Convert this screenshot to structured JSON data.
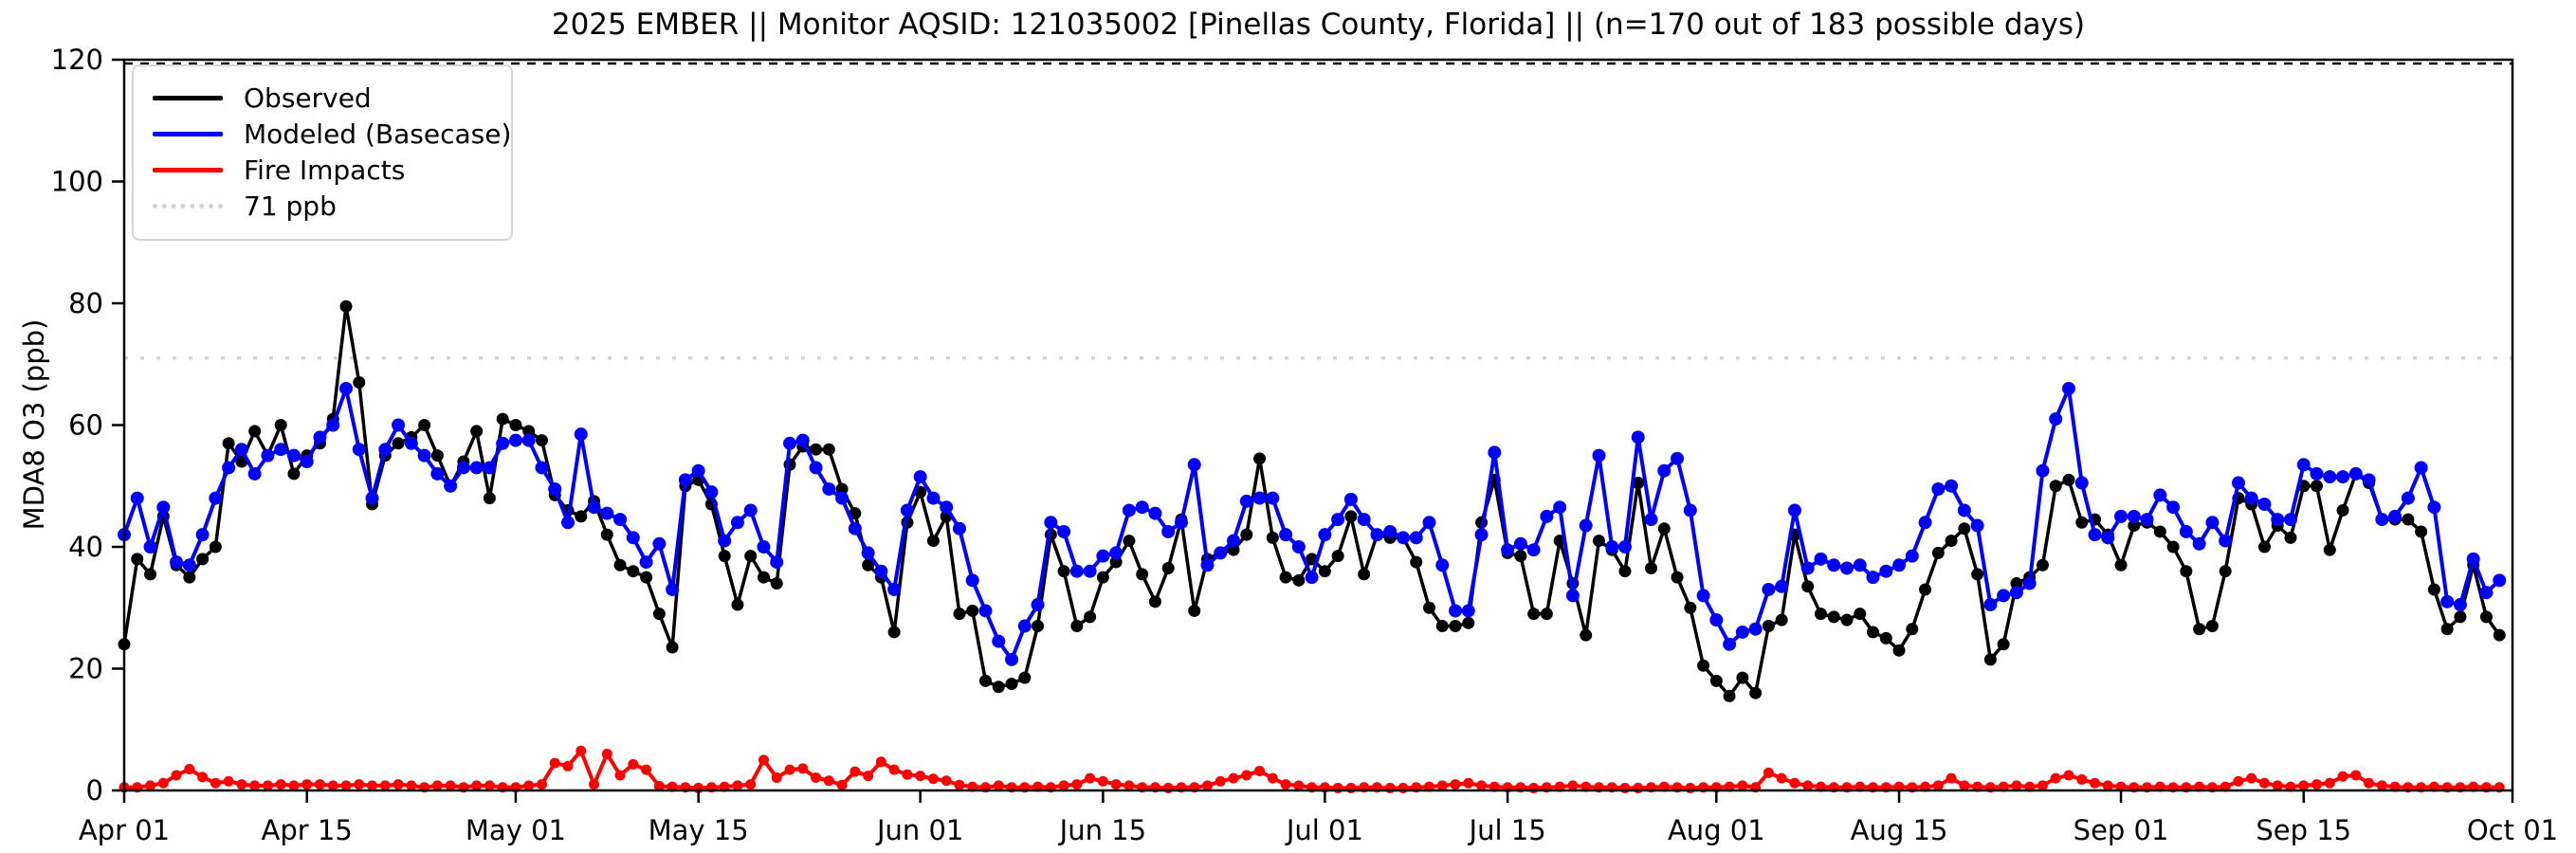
{
  "chart_data": {
    "type": "line",
    "title": "2025 EMBER || Monitor AQSID: 121035002 [Pinellas County, Florida] || (n=170 out of 183 possible days)",
    "ylabel": "MDA8 O3 (ppb)",
    "ylim": [
      0,
      120
    ],
    "y_ticks": [
      0,
      20,
      40,
      60,
      80,
      100,
      120
    ],
    "n_days": 183,
    "grid": false,
    "legend_position": "upper-left",
    "background_color": "#ffffff",
    "x_ticks": [
      {
        "day": 0,
        "label": "Apr 01"
      },
      {
        "day": 14,
        "label": "Apr 15"
      },
      {
        "day": 30,
        "label": "May 01"
      },
      {
        "day": 44,
        "label": "May 15"
      },
      {
        "day": 61,
        "label": "Jun 01"
      },
      {
        "day": 75,
        "label": "Jun 15"
      },
      {
        "day": 92,
        "label": "Jul 01"
      },
      {
        "day": 106,
        "label": "Jul 15"
      },
      {
        "day": 122,
        "label": "Aug 01"
      },
      {
        "day": 136,
        "label": "Aug 15"
      },
      {
        "day": 153,
        "label": "Sep 01"
      },
      {
        "day": 167,
        "label": "Sep 15"
      },
      {
        "day": 183,
        "label": "Oct 01"
      }
    ],
    "threshold": {
      "label": "71 ppb",
      "value": 71,
      "color": "#d3d3d3",
      "style": "dotted"
    },
    "upper_line": {
      "value": 120,
      "color": "#000000",
      "style": "dashed"
    },
    "series": [
      {
        "name": "Observed",
        "color": "#000000",
        "marker_radius": 6.5,
        "line_width": 3.5,
        "values": [
          24,
          38,
          35.5,
          45,
          37,
          35,
          38,
          40,
          57,
          54,
          59,
          55,
          60,
          52,
          55,
          57,
          61,
          79.5,
          67,
          47,
          55,
          57,
          58,
          60,
          55,
          50,
          54,
          59,
          48,
          61,
          60,
          59,
          57.5,
          48.5,
          46,
          45,
          47.5,
          42,
          37,
          36,
          35,
          29,
          23.5,
          50,
          51,
          47,
          38.5,
          30.5,
          38.5,
          35,
          34,
          53.5,
          56.5,
          56,
          56,
          49.5,
          45.5,
          37,
          35,
          26,
          44,
          49,
          41,
          45,
          29,
          29.5,
          18,
          17,
          17.5,
          18.5,
          27,
          42,
          36,
          27,
          28.5,
          35,
          37.5,
          41,
          35.5,
          31,
          36.5,
          44.5,
          29.5,
          38,
          39,
          39.5,
          42,
          54.5,
          41.5,
          35,
          34.5,
          38,
          36,
          38.5,
          45,
          35.5,
          42,
          41.5,
          41.5,
          37.5,
          30,
          27,
          27,
          27.5,
          44,
          51,
          39,
          38.5,
          29,
          29,
          41,
          34,
          25.5,
          41,
          39.5,
          36,
          50.5,
          36.5,
          43,
          35,
          30,
          20.5,
          18,
          15.5,
          18.5,
          16,
          27,
          28,
          42,
          33.5,
          29,
          28.5,
          28,
          29,
          26,
          25,
          23,
          26.5,
          33,
          39,
          41,
          43,
          35.5,
          21.5,
          24,
          34,
          35,
          37,
          50,
          51,
          44,
          44.5,
          42,
          37,
          43.5,
          44,
          42.5,
          40,
          36,
          26.5,
          27,
          36,
          48,
          47,
          40,
          43.5,
          41.5,
          50,
          50,
          39.5,
          46,
          52,
          50.5,
          44.5,
          44.5,
          44.5,
          42.5,
          33,
          26.5,
          28.5,
          37,
          28.5,
          25.5
        ]
      },
      {
        "name": "Modeled (Basecase)",
        "color": "#0000ff",
        "marker_radius": 7,
        "line_width": 4,
        "values": [
          42,
          48,
          40,
          46.5,
          37.5,
          37,
          42,
          48,
          53,
          56,
          52,
          55,
          56,
          55,
          54,
          58,
          60,
          66,
          56,
          48,
          56,
          60,
          57,
          55,
          52,
          50,
          53,
          53,
          53,
          57,
          57.5,
          57.5,
          53,
          49.5,
          44,
          58.5,
          46.5,
          45.5,
          44.5,
          41.5,
          37.5,
          40.5,
          33,
          51,
          52.5,
          49,
          41,
          44,
          46,
          40,
          37.5,
          57,
          57.5,
          53,
          49.5,
          48,
          43,
          39,
          36,
          33,
          46,
          51.5,
          48,
          46.5,
          43,
          34.5,
          29.5,
          24.5,
          21.5,
          27,
          30.5,
          44,
          42.5,
          36,
          36,
          38.5,
          39,
          46,
          46.5,
          45.5,
          42.5,
          44,
          53.5,
          37,
          39,
          41,
          47.5,
          48,
          48,
          42,
          40,
          35,
          42,
          44.5,
          47.8,
          44.5,
          42,
          42.5,
          41.5,
          41.5,
          44,
          37,
          29.5,
          29.5,
          42,
          55.5,
          39.5,
          40.5,
          39.5,
          45,
          46.5,
          32,
          43.5,
          55,
          40,
          40,
          58,
          44.5,
          52.5,
          54.5,
          46,
          32,
          28,
          24,
          26,
          26.5,
          33,
          33.5,
          46,
          36.5,
          38,
          37,
          36.5,
          37,
          35,
          36,
          37,
          38.5,
          44,
          49.5,
          50,
          46,
          43.5,
          30.5,
          32,
          32.5,
          34,
          52.5,
          61,
          66,
          50.5,
          42,
          41.5,
          45,
          45,
          44.5,
          48.5,
          46.5,
          42.5,
          40.5,
          44,
          41,
          50.5,
          48,
          47,
          44.5,
          44.5,
          53.5,
          52,
          51.5,
          51.5,
          52,
          51,
          44.5,
          45,
          48,
          53,
          46.5,
          31,
          30.5,
          38,
          32.5,
          34.5
        ]
      },
      {
        "name": "Fire Impacts",
        "color": "#ff0000",
        "marker_radius": 5.5,
        "line_width": 4,
        "values": [
          0.5,
          0.5,
          0.8,
          1.2,
          2.5,
          3.5,
          2.2,
          1.2,
          1.5,
          1,
          0.8,
          0.8,
          1,
          0.8,
          1,
          1,
          0.8,
          0.8,
          1,
          0.8,
          0.8,
          1,
          0.8,
          0.5,
          0.8,
          0.8,
          0.5,
          0.8,
          0.8,
          0.5,
          0.5,
          0.8,
          1,
          4.5,
          4,
          6.5,
          1,
          6,
          2.5,
          4.3,
          3.4,
          0.7,
          0.6,
          0.5,
          0.4,
          0.5,
          0.6,
          0.8,
          1,
          5,
          2.1,
          3.4,
          3.6,
          2.1,
          1.6,
          0.9,
          3.1,
          2.4,
          4.7,
          3.4,
          2.6,
          2.4,
          1.9,
          1.6,
          0.9,
          0.6,
          0.5,
          0.8,
          0.5,
          0.5,
          0.6,
          0.5,
          0.8,
          1,
          2,
          1.5,
          1,
          0.8,
          0.5,
          0.5,
          0.4,
          0.5,
          0.5,
          0.8,
          1.5,
          2,
          2.5,
          3.2,
          2,
          1,
          0.8,
          0.5,
          0.5,
          0.4,
          0.4,
          0.5,
          0.5,
          0.4,
          0.4,
          0.5,
          0.6,
          0.8,
          1,
          1.2,
          0.8,
          0.6,
          0.5,
          0.5,
          0.4,
          0.5,
          0.6,
          0.8,
          0.6,
          0.5,
          0.5,
          0.4,
          0.4,
          0.5,
          0.6,
          0.5,
          0.4,
          0.5,
          0.5,
          0.6,
          0.8,
          0.5,
          2.9,
          2,
          1.2,
          0.8,
          0.6,
          0.5,
          0.5,
          0.6,
          0.5,
          0.5,
          0.6,
          0.5,
          0.6,
          0.8,
          2,
          0.8,
          0.6,
          0.5,
          0.6,
          0.8,
          0.6,
          0.8,
          2,
          2.5,
          1.8,
          1.2,
          0.8,
          0.6,
          0.5,
          0.5,
          0.6,
          0.5,
          0.5,
          0.6,
          0.5,
          0.6,
          1.5,
          2,
          1.2,
          0.8,
          0.6,
          0.8,
          1,
          1.2,
          2.3,
          2.5,
          1.2,
          0.8,
          0.6,
          0.5,
          0.5,
          0.6,
          0.5,
          0.5,
          0.6,
          0.5,
          0.5
        ]
      }
    ]
  }
}
